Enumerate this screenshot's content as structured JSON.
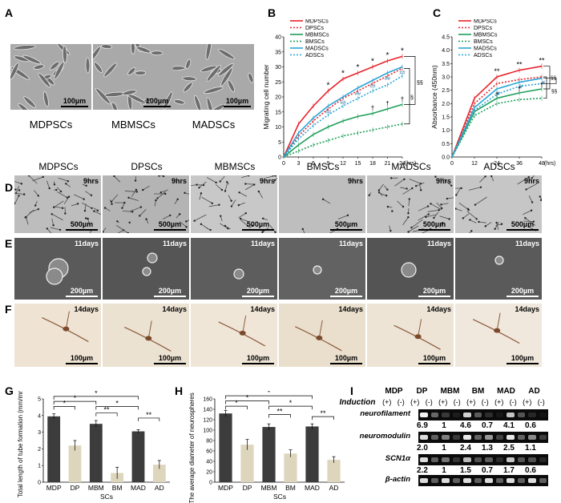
{
  "panels": {
    "A": "A",
    "B": "B",
    "C": "C",
    "D": "D",
    "E": "E",
    "F": "F",
    "G": "G",
    "H": "H",
    "I": "I"
  },
  "panelA": {
    "images": [
      {
        "caption": "MDPSCs",
        "scalebar": "100µm"
      },
      {
        "caption": "MBMSCs",
        "scalebar": "100µm"
      },
      {
        "caption": "MADSCs",
        "scalebar": "100µm"
      }
    ]
  },
  "columns": [
    "MDPSCs",
    "DPSCs",
    "MBMSCs",
    "BMSCs",
    "MADSCs",
    "ADSCs"
  ],
  "rowD": {
    "time": "9hrs",
    "scalebar": "500µm"
  },
  "rowE": {
    "time": "11days",
    "scalebar": "200µm"
  },
  "rowF": {
    "time": "14days",
    "scalebar": "100µm"
  },
  "legend": [
    {
      "name": "MDPSCs",
      "color": "#e8252b",
      "dash": ""
    },
    {
      "name": "DPSCs",
      "color": "#e8252b",
      "dash": "2,2"
    },
    {
      "name": "MBMSCs",
      "color": "#1f9e5a",
      "dash": ""
    },
    {
      "name": "BMSCs",
      "color": "#1f9e5a",
      "dash": "2,2"
    },
    {
      "name": "MADSCs",
      "color": "#2aa6d6",
      "dash": ""
    },
    {
      "name": "ADSCs",
      "color": "#2aa6d6",
      "dash": "2,2"
    }
  ],
  "chart_data": [
    {
      "id": "B",
      "type": "line",
      "ylabel": "Migrating cell number",
      "xlabel": "(hrs)",
      "x": [
        0,
        3,
        6,
        9,
        12,
        15,
        18,
        21,
        24
      ],
      "xlim": [
        0,
        24
      ],
      "ylim": [
        0,
        40
      ],
      "xticks": [
        "0",
        "3",
        "6",
        "9",
        "12",
        "15",
        "18",
        "21",
        "24"
      ],
      "yticks": [
        "0",
        "5",
        "10",
        "15",
        "20",
        "25",
        "30",
        "35",
        "40"
      ],
      "series": [
        {
          "name": "MDPSCs",
          "values": [
            0,
            11,
            17,
            22,
            26,
            28,
            30,
            32,
            33.5
          ]
        },
        {
          "name": "DPSCs",
          "values": [
            0,
            7,
            12,
            16,
            19.5,
            22,
            24.5,
            27,
            29.5
          ]
        },
        {
          "name": "MBMSCs",
          "values": [
            0,
            4,
            7.5,
            10,
            12,
            13.5,
            14.5,
            16,
            17.5
          ]
        },
        {
          "name": "BMSCs",
          "values": [
            0,
            2,
            4,
            5.5,
            7,
            8,
            9,
            10,
            11
          ]
        },
        {
          "name": "MADSCs",
          "values": [
            0,
            8,
            13,
            17,
            20,
            23,
            25.5,
            28,
            30
          ]
        },
        {
          "name": "ADSCs",
          "values": [
            0,
            6,
            10.5,
            14,
            17,
            19.5,
            22,
            24,
            27
          ]
        }
      ],
      "annotations": {
        "star": "*",
        "dhash": "##",
        "dagger": "†",
        "sect": "§",
        "dsect": "§§"
      }
    },
    {
      "id": "C",
      "type": "line",
      "ylabel": "Absorbance (450nm)",
      "xlabel": "(hrs)",
      "x": [
        0,
        12,
        24,
        36,
        48
      ],
      "xlim": [
        0,
        48
      ],
      "ylim": [
        0,
        4.5
      ],
      "xticks": [
        "0",
        "12",
        "24",
        "36",
        "48"
      ],
      "yticks": [
        "0.0",
        "0.5",
        "1.0",
        "1.5",
        "2.0",
        "2.5",
        "3.0",
        "3.5",
        "4.0",
        "4.5"
      ],
      "series": [
        {
          "name": "MDPSCs",
          "values": [
            0,
            2.2,
            3.0,
            3.25,
            3.4
          ]
        },
        {
          "name": "DPSCs",
          "values": [
            0,
            2.0,
            2.75,
            2.9,
            3.0
          ]
        },
        {
          "name": "MBMSCs",
          "values": [
            0,
            1.7,
            2.2,
            2.4,
            2.55
          ]
        },
        {
          "name": "BMSCs",
          "values": [
            0,
            1.55,
            2.0,
            2.15,
            2.2
          ]
        },
        {
          "name": "MADSCs",
          "values": [
            0,
            1.85,
            2.55,
            2.8,
            2.95
          ]
        },
        {
          "name": "ADSCs",
          "values": [
            0,
            1.75,
            2.35,
            2.65,
            2.75
          ]
        }
      ],
      "annotations": {
        "dstar": "**",
        "hash": "#",
        "dagger": "†",
        "dsect": "§§"
      }
    },
    {
      "id": "G",
      "type": "bar",
      "ylabel": "Total length of tube formation (mm/mm²)",
      "xlabel": "SCs",
      "categories": [
        "MDP",
        "DP",
        "MBM",
        "BM",
        "MAD",
        "AD"
      ],
      "values": [
        3.95,
        2.2,
        3.5,
        0.55,
        3.05,
        1.05
      ],
      "errors": [
        0.15,
        0.3,
        0.2,
        0.35,
        0.1,
        0.25
      ],
      "ylim": [
        0,
        5
      ],
      "yticks": [
        "0",
        "1",
        "2",
        "3",
        "4",
        "5"
      ],
      "sig": [
        "*",
        "*",
        "*",
        "**",
        "*",
        "**"
      ]
    },
    {
      "id": "H",
      "type": "bar",
      "ylabel": "The average diameter of neurospheres (µm)",
      "xlabel": "SCs",
      "categories": [
        "MDP",
        "DP",
        "MBM",
        "BM",
        "MAD",
        "AD"
      ],
      "values": [
        132,
        72,
        106,
        55,
        107,
        43
      ],
      "errors": [
        6,
        10,
        6,
        7,
        5,
        6
      ],
      "ylim": [
        0,
        160
      ],
      "yticks": [
        "0",
        "20",
        "40",
        "60",
        "80",
        "100",
        "120",
        "140",
        "160"
      ],
      "sig": [
        "*",
        "*",
        "*",
        "**",
        "*",
        "**"
      ]
    }
  ],
  "panelI": {
    "groups": [
      "MDP",
      "DP",
      "MBM",
      "BM",
      "MAD",
      "AD"
    ],
    "induction_label": "Induction",
    "signs": [
      "(+)",
      "(-)",
      "(+)",
      "(-)",
      "(+)",
      "(-)",
      "(+)",
      "(-)",
      "(+)",
      "(-)",
      "(+)",
      "(-)"
    ],
    "genes": [
      {
        "name": "neurofilament",
        "values": [
          "6.9",
          "1",
          "4.6",
          "0.7",
          "4.1",
          "0.6"
        ]
      },
      {
        "name": "neuromodulin",
        "values": [
          "2.0",
          "1",
          "2.4",
          "1.3",
          "2.5",
          "1.1"
        ]
      },
      {
        "name": "SCN1α",
        "values": [
          "2.2",
          "1",
          "1.5",
          "0.7",
          "1.7",
          "0.6"
        ]
      },
      {
        "name": "β-actin",
        "values": []
      }
    ]
  }
}
